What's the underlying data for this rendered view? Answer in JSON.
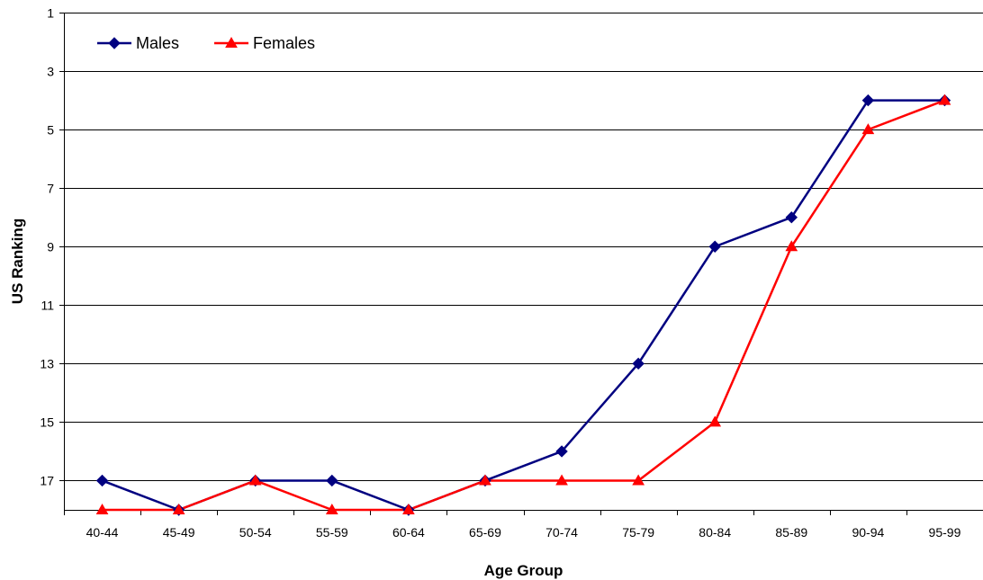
{
  "chart_data": {
    "type": "line",
    "title": "",
    "xlabel": "Age Group",
    "ylabel": "US Ranking",
    "categories": [
      "40-44",
      "45-49",
      "50-54",
      "55-59",
      "60-64",
      "65-69",
      "70-74",
      "75-79",
      "80-84",
      "85-89",
      "90-94",
      "95-99"
    ],
    "y_axis": {
      "min": 1,
      "max": 18,
      "reversed": true,
      "ticks": [
        1,
        3,
        5,
        7,
        9,
        11,
        13,
        15,
        17
      ],
      "tick_labels": [
        "1",
        "3",
        "5",
        "7",
        "9",
        "11",
        "13",
        "15",
        "17"
      ]
    },
    "grid": true,
    "legend_position": "top-left",
    "series": [
      {
        "name": "Males",
        "color": "#000080",
        "marker": "diamond",
        "values": [
          17,
          18,
          17,
          17,
          18,
          17,
          16,
          13,
          9,
          8,
          4,
          4
        ]
      },
      {
        "name": "Females",
        "color": "#ff0000",
        "marker": "triangle",
        "values": [
          18,
          18,
          17,
          18,
          18,
          17,
          17,
          17,
          15,
          9,
          5,
          4
        ]
      }
    ]
  }
}
